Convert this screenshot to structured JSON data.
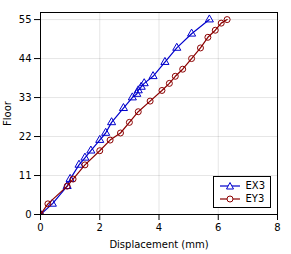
{
  "chart_data": {
    "type": "line",
    "xlabel": "Displacement (mm)",
    "ylabel": "Floor",
    "xlim": [
      0,
      8
    ],
    "ylim": [
      0,
      57
    ],
    "xticks": [
      0,
      2,
      4,
      6,
      8
    ],
    "yticks": [
      0,
      11,
      22,
      33,
      44,
      55
    ],
    "grid": true,
    "legend": "lower right",
    "series": [
      {
        "name": "EX3",
        "color": "#0000cc",
        "marker": "triangle",
        "x": [
          0,
          0.4,
          0.9,
          1.0,
          1.3,
          1.5,
          1.7,
          2.0,
          2.2,
          2.4,
          2.8,
          3.1,
          3.25,
          3.3,
          3.4,
          3.5,
          3.8,
          4.2,
          4.6,
          5.1,
          5.7
        ],
        "values": [
          0,
          3,
          8,
          10,
          14,
          16,
          18,
          21,
          23,
          26,
          30,
          33,
          34,
          35,
          36,
          37,
          39,
          43,
          47,
          51,
          55
        ]
      },
      {
        "name": "EY3",
        "color": "#8b0000",
        "marker": "circle",
        "x": [
          0,
          0.25,
          0.9,
          1.1,
          1.5,
          2.0,
          2.35,
          2.7,
          3.0,
          3.3,
          3.7,
          4.1,
          4.35,
          4.55,
          4.8,
          5.1,
          5.4,
          5.65,
          5.9,
          6.1,
          6.3
        ],
        "values": [
          0,
          3,
          8,
          10,
          14,
          18,
          21,
          23,
          26,
          29,
          32,
          35,
          37,
          39,
          41,
          44,
          47,
          50,
          52,
          54,
          55
        ]
      }
    ]
  }
}
